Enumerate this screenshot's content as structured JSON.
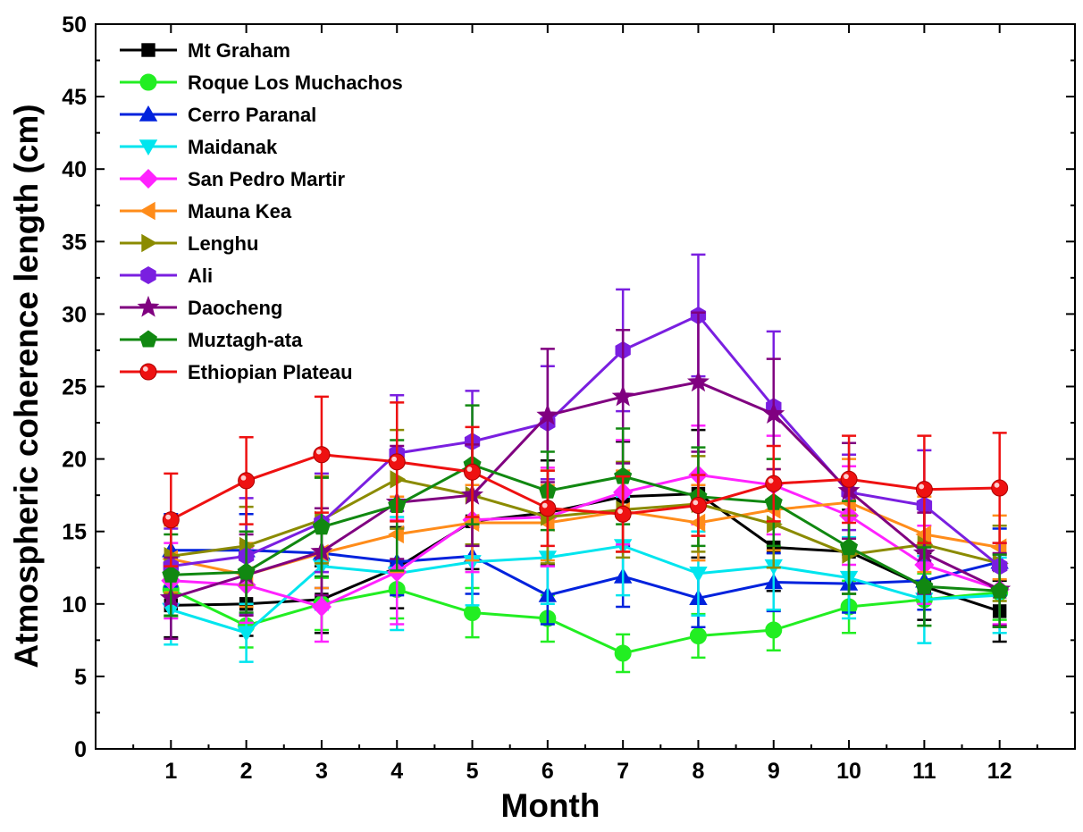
{
  "chart_data": {
    "type": "line",
    "title": "",
    "xlabel": "Month",
    "ylabel": "Atmospheric coherence length (cm)",
    "xlim": [
      0,
      13
    ],
    "ylim": [
      0,
      50
    ],
    "xticks": [
      1,
      2,
      3,
      4,
      5,
      6,
      7,
      8,
      9,
      10,
      11,
      12
    ],
    "yticks": [
      0,
      5,
      10,
      15,
      20,
      25,
      30,
      35,
      40,
      45,
      50
    ],
    "x": [
      1,
      2,
      3,
      4,
      5,
      6,
      7,
      8,
      9,
      10,
      11,
      12
    ],
    "grid": false,
    "legend": "top-left",
    "series": [
      {
        "name": "Mt Graham",
        "color": "#000000",
        "marker": "square",
        "values": [
          9.9,
          10.0,
          10.3,
          12.5,
          15.7,
          16.3,
          17.4,
          17.6,
          13.9,
          13.6,
          11.2,
          9.5
        ],
        "errors": [
          2.2,
          2.2,
          2.3,
          2.8,
          3.3,
          3.6,
          3.8,
          4.4,
          3.0,
          2.9,
          2.3,
          2.1
        ]
      },
      {
        "name": "Roque Los Muchachos",
        "color": "#22ee22",
        "marker": "circle",
        "values": [
          11.0,
          8.5,
          10.0,
          11.0,
          9.4,
          9.0,
          6.6,
          7.8,
          8.2,
          9.8,
          10.3,
          10.8
        ],
        "errors": [
          1.9,
          1.5,
          1.8,
          2.0,
          1.7,
          1.6,
          1.3,
          1.5,
          1.4,
          1.8,
          1.8,
          1.9
        ]
      },
      {
        "name": "Cerro Paranal",
        "color": "#0022dd",
        "marker": "triangle-up",
        "values": [
          13.7,
          13.7,
          13.5,
          12.9,
          13.3,
          10.6,
          11.9,
          10.4,
          11.5,
          11.4,
          11.6,
          12.9
        ],
        "errors": [
          2.5,
          2.5,
          2.4,
          2.3,
          2.6,
          2.0,
          2.1,
          2.0,
          2.0,
          2.0,
          2.0,
          2.3
        ]
      },
      {
        "name": "Maidanak",
        "color": "#00e5ee",
        "marker": "triangle-down",
        "values": [
          9.6,
          8.0,
          12.6,
          12.1,
          12.9,
          13.2,
          14.0,
          12.1,
          12.6,
          11.8,
          10.3,
          10.6
        ],
        "errors": [
          2.4,
          2.0,
          3.0,
          3.9,
          3.0,
          3.2,
          3.4,
          2.9,
          3.0,
          2.8,
          3.0,
          2.6
        ]
      },
      {
        "name": "San Pedro Martir",
        "color": "#ff22ff",
        "marker": "diamond",
        "values": [
          11.6,
          11.3,
          9.8,
          12.2,
          15.8,
          16.0,
          17.7,
          18.9,
          18.2,
          16.1,
          12.7,
          11.0
        ],
        "errors": [
          2.6,
          2.6,
          2.4,
          3.6,
          3.6,
          3.4,
          3.6,
          3.4,
          3.4,
          3.4,
          2.7,
          2.4
        ]
      },
      {
        "name": "Mauna Kea",
        "color": "#ff8c1a",
        "marker": "triangle-left",
        "values": [
          13.1,
          12.0,
          13.5,
          14.8,
          15.6,
          15.6,
          16.4,
          15.6,
          16.5,
          17.0,
          14.8,
          13.9
        ],
        "errors": [
          2.3,
          2.2,
          2.4,
          2.6,
          2.6,
          2.6,
          2.8,
          2.6,
          2.8,
          3.0,
          2.6,
          2.2
        ]
      },
      {
        "name": "Lenghu",
        "color": "#8b8b00",
        "marker": "triangle-right",
        "values": [
          13.3,
          14.0,
          15.8,
          18.6,
          17.5,
          16.0,
          16.5,
          16.9,
          15.5,
          13.4,
          14.1,
          12.8
        ],
        "errors": [
          2.6,
          2.7,
          3.0,
          3.4,
          3.4,
          3.2,
          3.3,
          3.3,
          3.0,
          2.7,
          2.8,
          2.6
        ]
      },
      {
        "name": "Ali",
        "color": "#7a1fe0",
        "marker": "hexagon",
        "values": [
          12.6,
          13.3,
          15.6,
          20.4,
          21.2,
          22.5,
          27.5,
          29.9,
          23.6,
          17.7,
          16.8,
          12.6
        ],
        "errors": [
          2.6,
          4.0,
          3.4,
          4.0,
          3.5,
          3.9,
          4.2,
          4.2,
          5.2,
          2.6,
          3.8,
          1.6
        ]
      },
      {
        "name": "Daocheng",
        "color": "#800080",
        "marker": "star",
        "values": [
          10.4,
          12.0,
          13.6,
          17.0,
          17.5,
          23.0,
          24.3,
          25.3,
          23.1,
          17.8,
          13.5,
          11.0
        ],
        "errors": [
          2.8,
          2.8,
          3.0,
          3.9,
          3.5,
          4.6,
          4.6,
          4.8,
          3.8,
          3.3,
          2.8,
          2.5
        ]
      },
      {
        "name": "Muztagh-ata",
        "color": "#118811",
        "marker": "pentagon",
        "values": [
          12.0,
          12.2,
          15.3,
          16.8,
          19.6,
          17.8,
          18.8,
          17.4,
          17.0,
          13.9,
          11.2,
          10.9
        ],
        "errors": [
          2.8,
          2.8,
          3.4,
          4.5,
          4.1,
          2.7,
          3.3,
          3.4,
          3.0,
          3.2,
          2.7,
          2.5
        ]
      },
      {
        "name": "Ethiopian Plateau",
        "color": "#ee1111",
        "marker": "sphere",
        "values": [
          15.8,
          18.5,
          20.3,
          19.8,
          19.1,
          16.6,
          16.2,
          16.8,
          18.3,
          18.6,
          17.9,
          18.0
        ],
        "errors": [
          3.2,
          3.0,
          4.0,
          4.1,
          3.1,
          2.6,
          2.6,
          2.1,
          2.6,
          3.0,
          3.7,
          3.8
        ]
      }
    ]
  }
}
